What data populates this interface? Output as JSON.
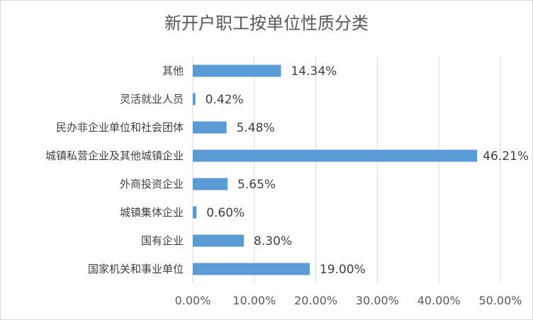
{
  "chart_data": {
    "type": "bar",
    "orientation": "horizontal",
    "title": "新开户职工按单位性质分类",
    "categories": [
      "国家机关和事业单位",
      "国有企业",
      "城镇集体企业",
      "外商投资企业",
      "城镇私营企业及其他城镇企业",
      "民办非企业单位和社会团体",
      "灵活就业人员",
      "其他"
    ],
    "values": [
      19.0,
      8.3,
      0.6,
      5.65,
      46.21,
      5.48,
      0.42,
      14.34
    ],
    "value_labels": [
      "19.00%",
      "8.30%",
      "0.60%",
      "5.65%",
      "46.21%",
      "5.48%",
      "0.42%",
      "14.34%"
    ],
    "xlim": [
      0,
      50
    ],
    "xticks": [
      0,
      10,
      20,
      30,
      40,
      50
    ],
    "xtick_labels": [
      "0.00%",
      "10.00%",
      "20.00%",
      "30.00%",
      "40.00%",
      "50.00%"
    ],
    "grid": "vertical",
    "legend": "none",
    "bar_color": "#5b9bd5",
    "grid_color": "#d9d9d9"
  }
}
